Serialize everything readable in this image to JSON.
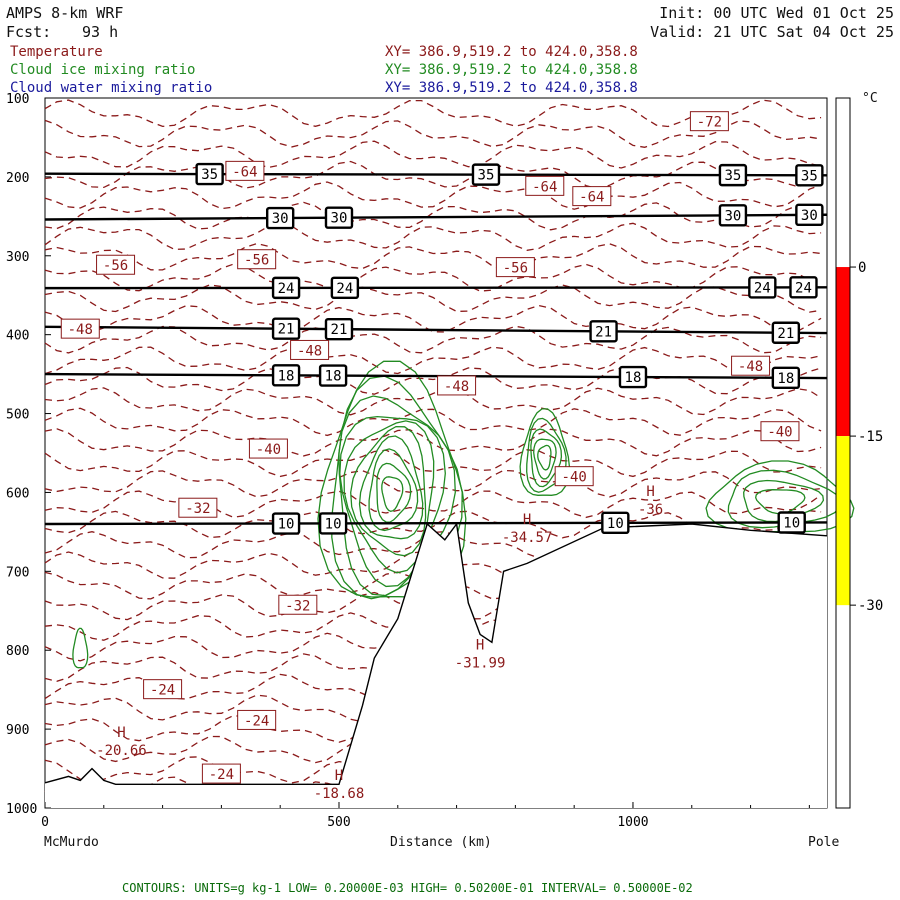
{
  "header": {
    "model": "AMPS 8-km WRF",
    "fcst_label": "Fcst:",
    "fcst_value": "93 h",
    "init": "Init: 00 UTC Wed 01 Oct 25",
    "valid": "Valid: 21 UTC Sat 04 Oct 25"
  },
  "fields": [
    {
      "name": "Temperature",
      "xy": "XY= 386.9,519.2 to 424.0,358.8",
      "color": "#8b1a1a"
    },
    {
      "name": "Cloud ice mixing ratio",
      "xy": "XY= 386.9,519.2 to 424.0,358.8",
      "color": "#228b22"
    },
    {
      "name": "Cloud water mixing ratio",
      "xy": "XY= 386.9,519.2 to 424.0,358.8",
      "color": "#1a1a9c"
    }
  ],
  "footer": "CONTOURS: UNITS=g kg-1 LOW= 0.20000E-03 HIGH= 0.50200E-01 INTERVAL= 0.50000E-02",
  "chart_data": {
    "type": "line",
    "xlabel": "Distance (km)",
    "x_endpoints": [
      "McMurdo",
      "Pole"
    ],
    "xlim": [
      0,
      1330
    ],
    "x_ticks": [
      0,
      500,
      1000
    ],
    "ylim": [
      1000,
      100
    ],
    "y_ticks": [
      100,
      200,
      300,
      400,
      500,
      600,
      700,
      800,
      900,
      1000
    ],
    "colorbar": {
      "unit": "°C",
      "ticks": [
        0,
        -15,
        -30
      ],
      "bands": [
        {
          "from": 0,
          "to": -15,
          "color": "#ff0000"
        },
        {
          "from": -15,
          "to": -30,
          "color": "#ffff00"
        }
      ]
    },
    "theta_lines": [
      {
        "label": "35",
        "x": [
          0,
          1330
        ],
        "y": [
          196,
          198
        ],
        "label_x": [
          280,
          750,
          1170,
          1300
        ]
      },
      {
        "label": "30",
        "x": [
          0,
          1330
        ],
        "y": [
          254,
          248
        ],
        "label_x": [
          400,
          500,
          1170,
          1300
        ]
      },
      {
        "label": "24",
        "x": [
          0,
          1330
        ],
        "y": [
          341,
          340
        ],
        "label_x": [
          410,
          510,
          1220,
          1290
        ]
      },
      {
        "label": "21",
        "x": [
          0,
          1330
        ],
        "y": [
          390,
          398
        ],
        "label_x": [
          410,
          500,
          950,
          1260
        ]
      },
      {
        "label": "18",
        "x": [
          0,
          1330
        ],
        "y": [
          450,
          455
        ],
        "label_x": [
          410,
          490,
          1000,
          1260
        ]
      },
      {
        "label": "10",
        "x": [
          0,
          1330
        ],
        "y": [
          640,
          638
        ],
        "label_x": [
          410,
          490,
          970,
          1270
        ]
      }
    ],
    "temperature_labels": [
      {
        "label": "-72",
        "x": 1130,
        "y": 130
      },
      {
        "label": "-64",
        "x": 340,
        "y": 193
      },
      {
        "label": "-64",
        "x": 850,
        "y": 212
      },
      {
        "label": "-64",
        "x": 930,
        "y": 225
      },
      {
        "label": "-56",
        "x": 120,
        "y": 312
      },
      {
        "label": "-56",
        "x": 360,
        "y": 305
      },
      {
        "label": "-56",
        "x": 800,
        "y": 315
      },
      {
        "label": "-48",
        "x": 60,
        "y": 393
      },
      {
        "label": "-48",
        "x": 450,
        "y": 420
      },
      {
        "label": "-48",
        "x": 700,
        "y": 465
      },
      {
        "label": "-48",
        "x": 1200,
        "y": 440
      },
      {
        "label": "-40",
        "x": 380,
        "y": 545
      },
      {
        "label": "-40",
        "x": 900,
        "y": 580
      },
      {
        "label": "-40",
        "x": 1250,
        "y": 523
      },
      {
        "label": "-32",
        "x": 260,
        "y": 620
      },
      {
        "label": "-32",
        "x": 430,
        "y": 743
      },
      {
        "label": "-24",
        "x": 200,
        "y": 850
      },
      {
        "label": "-24",
        "x": 360,
        "y": 889
      },
      {
        "label": "-24",
        "x": 300,
        "y": 957
      }
    ],
    "extrema": [
      {
        "mark": "H",
        "value": "-20.66",
        "x": 130,
        "y": 925
      },
      {
        "mark": "H",
        "value": "-18.68",
        "x": 500,
        "y": 980
      },
      {
        "mark": "H",
        "value": "-31.99",
        "x": 740,
        "y": 814
      },
      {
        "mark": "H",
        "value": "-34.57",
        "x": 820,
        "y": 655
      },
      {
        "mark": "H",
        "value": "-36",
        "x": 1030,
        "y": 620
      }
    ],
    "terrain": {
      "x": [
        0,
        40,
        60,
        80,
        100,
        120,
        500,
        540,
        560,
        600,
        650,
        680,
        700,
        720,
        740,
        760,
        780,
        820,
        950,
        1100,
        1200,
        1330
      ],
      "y": [
        968,
        960,
        965,
        950,
        965,
        970,
        970,
        870,
        810,
        760,
        640,
        660,
        640,
        740,
        780,
        790,
        700,
        690,
        645,
        640,
        648,
        655
      ]
    }
  }
}
